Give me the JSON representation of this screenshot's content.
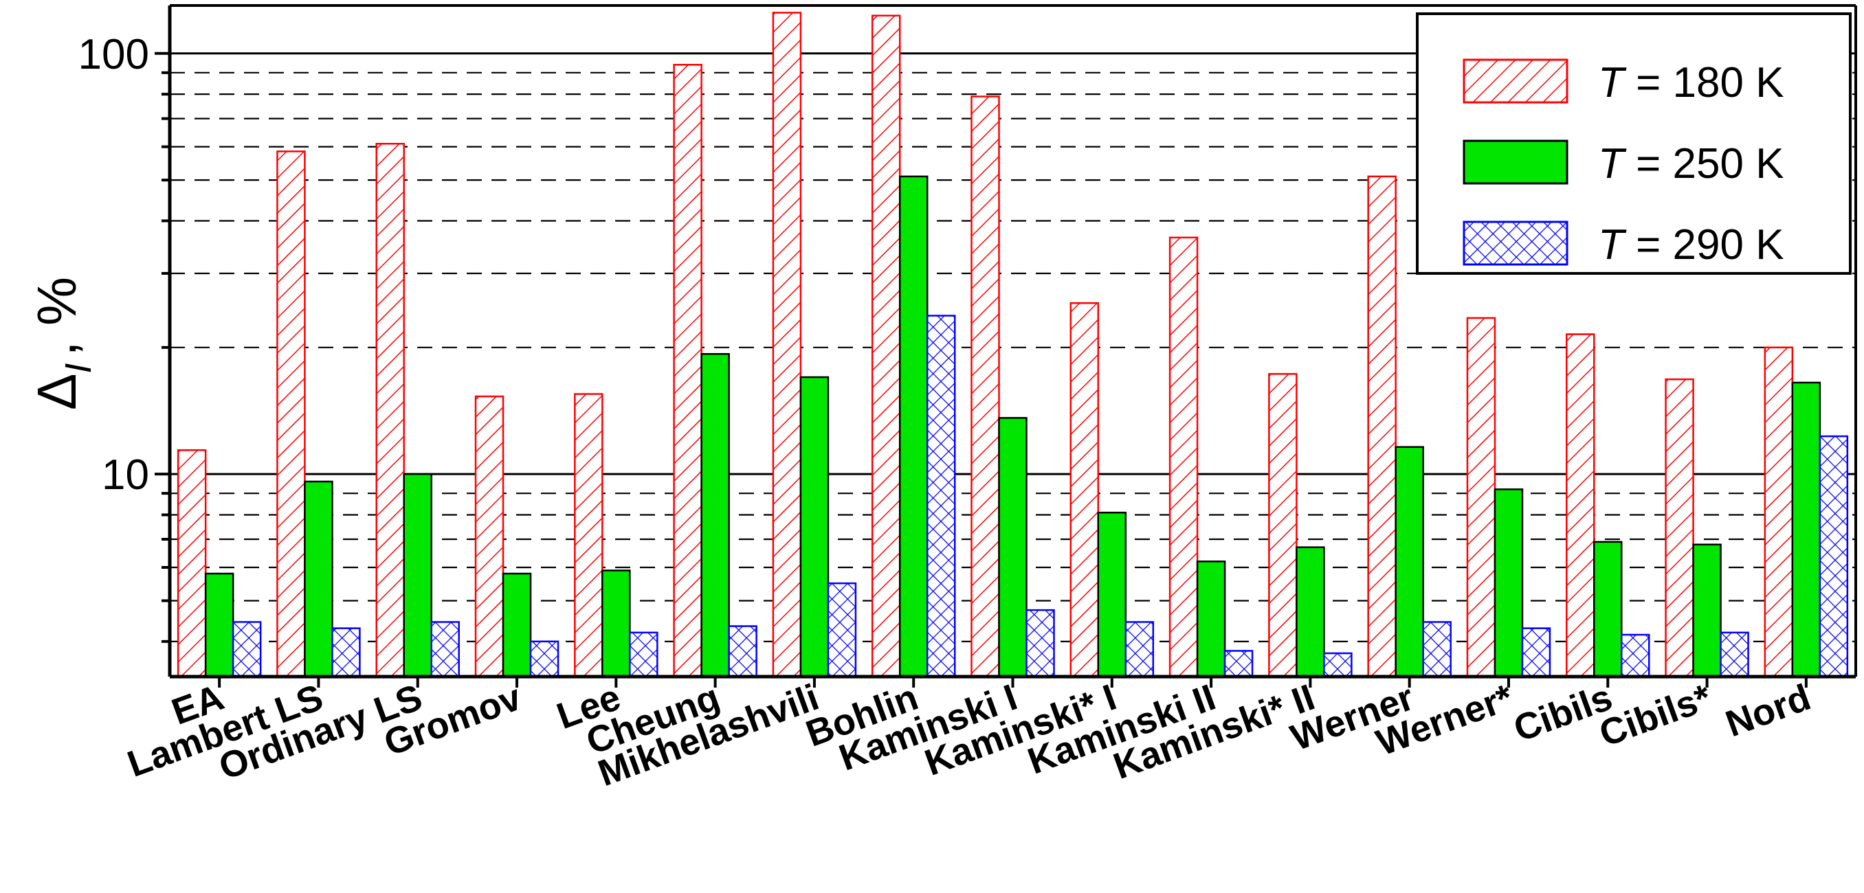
{
  "chart_data": {
    "type": "bar",
    "ylabel": {
      "symbol": "Δ",
      "subscript": "I",
      "unit": ", %"
    },
    "yscale": "log",
    "ylim": [
      3.3,
      130
    ],
    "yticks": [
      {
        "value": 10,
        "label": "10"
      },
      {
        "value": 100,
        "label": "100"
      }
    ],
    "grid": {
      "major": "solid",
      "minor": "dashed"
    },
    "legend_position": "top-right",
    "categories": [
      "EA",
      "Lambert LS",
      "Ordinary LS",
      "Gromov",
      "Lee",
      "Cheung",
      "Mikhelashvili",
      "Bohlin",
      "Kaminski I",
      "Kaminski* I",
      "Kaminski II",
      "Kaminski* II",
      "Werner",
      "Werner*",
      "Cibils",
      "Cibils*",
      "Nord"
    ],
    "series": [
      {
        "name": "T = 180 K",
        "italic": "T",
        "rest": " = 180 K",
        "color": "#ff0000",
        "fill": "hatch",
        "values": [
          11.4,
          58.5,
          61,
          15.3,
          15.5,
          94,
          125,
          123,
          79,
          25.5,
          36.5,
          17.3,
          51,
          23.5,
          21.5,
          16.8,
          20
        ]
      },
      {
        "name": "T = 250 K",
        "italic": "T",
        "rest": " = 250 K",
        "color": "#00e600",
        "fill": "solid",
        "values": [
          5.8,
          9.6,
          10,
          5.8,
          5.9,
          19.3,
          17,
          51,
          13.6,
          8.1,
          6.2,
          6.7,
          11.6,
          9.2,
          6.9,
          6.8,
          16.5
        ]
      },
      {
        "name": "T = 290 K",
        "italic": "T",
        "rest": " = 290 K",
        "color": "#0000ff",
        "fill": "crosshatch",
        "values": [
          4.45,
          4.3,
          4.45,
          4.0,
          4.2,
          4.35,
          5.5,
          23.8,
          4.75,
          4.45,
          3.8,
          3.75,
          4.45,
          4.3,
          4.15,
          4.2,
          12.3
        ]
      }
    ]
  }
}
